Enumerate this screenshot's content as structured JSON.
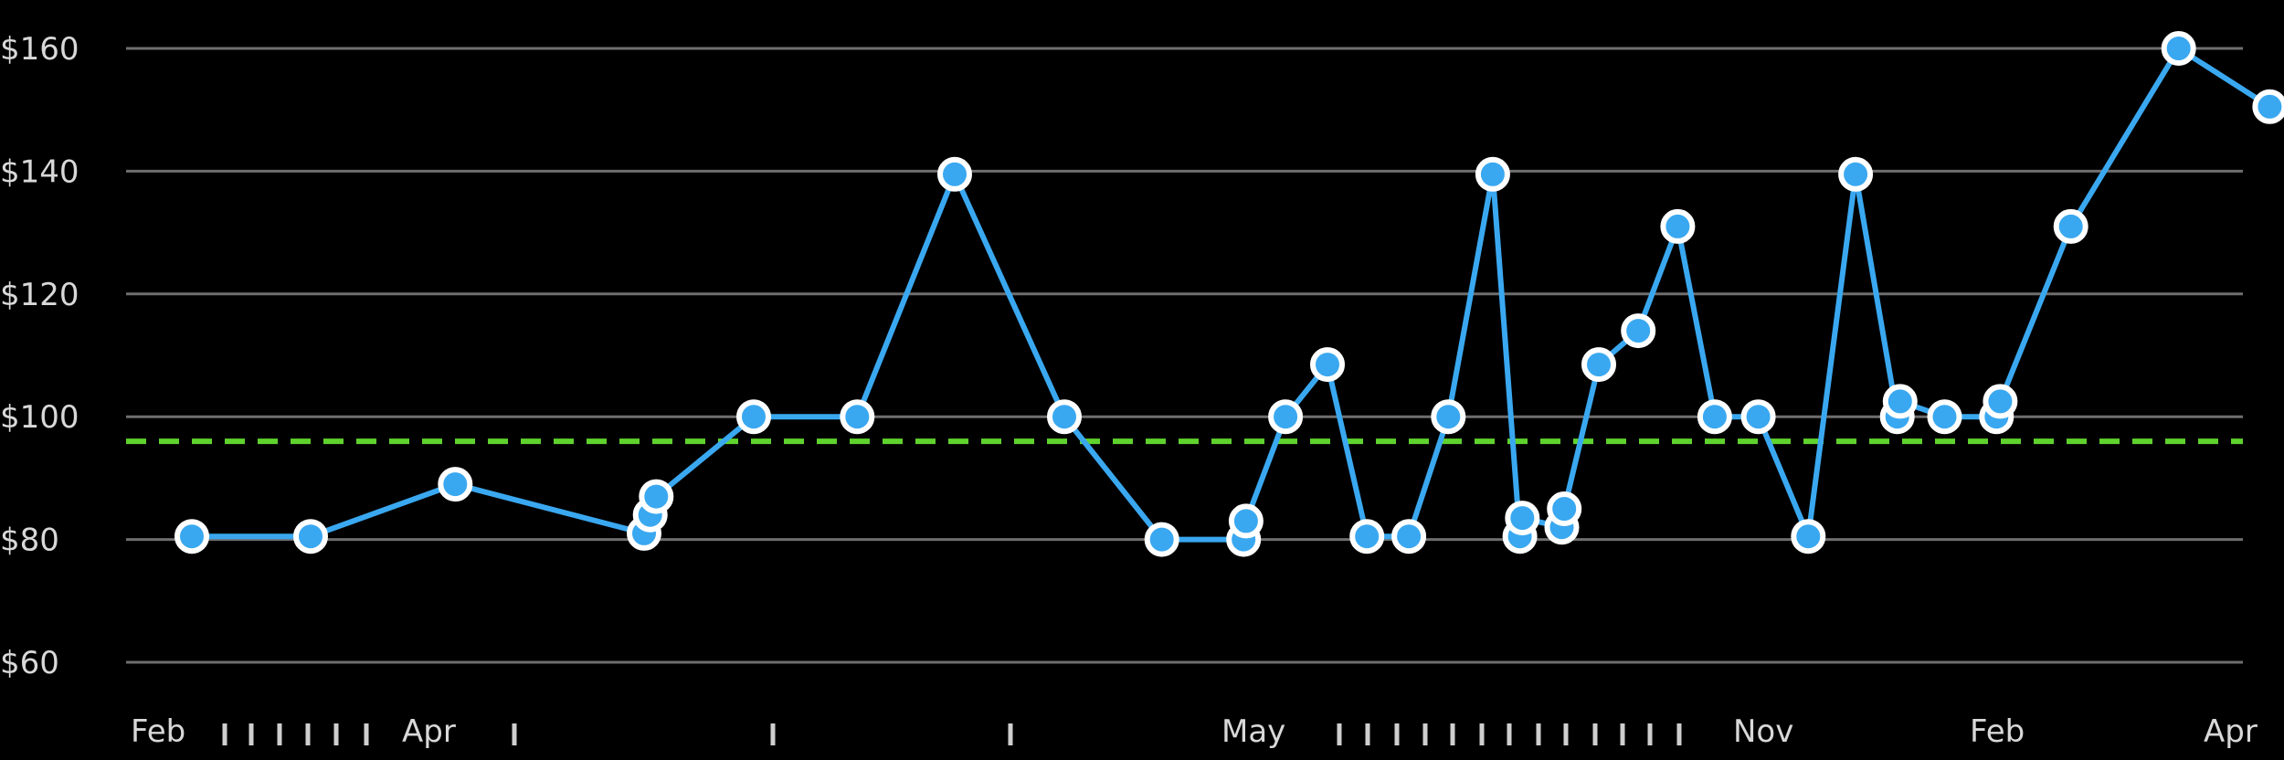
{
  "chart_data": {
    "type": "line",
    "title": "",
    "xlabel": "",
    "ylabel": "",
    "ylim": [
      50,
      168
    ],
    "y_ticks": [
      60,
      80,
      100,
      120,
      140,
      160
    ],
    "y_tick_labels": [
      "$60",
      "$80",
      "$100",
      "$120",
      "$140",
      "$160"
    ],
    "x_tick_labels": [
      "Feb",
      "Apr",
      "May",
      "Nov",
      "Feb",
      "Apr"
    ],
    "grid": true,
    "legend": "none",
    "series": [
      {
        "color": "#3aa8f0",
        "points": [
          {
            "date": "2015-02-13",
            "y": 80.5
          },
          {
            "date": "2015-03-11",
            "y": 80.5
          },
          {
            "date": "2015-04-09",
            "y": 89
          },
          {
            "date": "2015-05-10",
            "y": 81
          },
          {
            "date": "2015-05-11",
            "y": 84
          },
          {
            "date": "2015-05-12",
            "y": 87
          },
          {
            "date": "2015-05-28",
            "y": 100
          },
          {
            "date": "2015-06-14",
            "y": 100
          },
          {
            "date": "2015-06-30",
            "y": 139.5
          },
          {
            "date": "2015-07-18",
            "y": 100
          },
          {
            "date": "2015-08-03",
            "y": 80
          },
          {
            "date": "2015-08-20",
            "y": 80
          },
          {
            "date": "2015-08-21",
            "y": 83
          },
          {
            "date": "2015-09-06",
            "y": 100
          },
          {
            "date": "2015-09-23",
            "y": 108.5
          },
          {
            "date": "2015-10-09",
            "y": 80.5
          },
          {
            "date": "2015-10-26",
            "y": 80.5
          },
          {
            "date": "2015-11-11",
            "y": 100
          },
          {
            "date": "2015-11-29",
            "y": 139.5
          },
          {
            "date": "2015-12-10",
            "y": 80.5
          },
          {
            "date": "2015-12-11",
            "y": 83.5
          },
          {
            "date": "2015-12-27",
            "y": 82
          },
          {
            "date": "2015-12-28",
            "y": 85
          },
          {
            "date": "2016-01-11",
            "y": 108.5
          },
          {
            "date": "2016-01-27",
            "y": 114
          },
          {
            "date": "2016-02-12",
            "y": 131
          },
          {
            "date": "2016-02-27",
            "y": 100
          },
          {
            "date": "2016-03-14",
            "y": 100
          },
          {
            "date": "2016-04-01",
            "y": 80.5
          },
          {
            "date": "2016-04-18",
            "y": 139.5
          },
          {
            "date": "2016-05-03",
            "y": 100
          },
          {
            "date": "2016-05-04",
            "y": 102.5
          },
          {
            "date": "2016-05-20",
            "y": 100
          },
          {
            "date": "2016-06-06",
            "y": 100
          },
          {
            "date": "2016-06-07",
            "y": 102.5
          },
          {
            "date": "2016-06-26",
            "y": 131
          },
          {
            "date": "2016-07-25",
            "y": 160
          },
          {
            "date": "2016-08-22",
            "y": 150.5
          }
        ]
      }
    ],
    "reference_line": {
      "y": 96,
      "color": "#5fd22e",
      "style": "dashed"
    }
  }
}
